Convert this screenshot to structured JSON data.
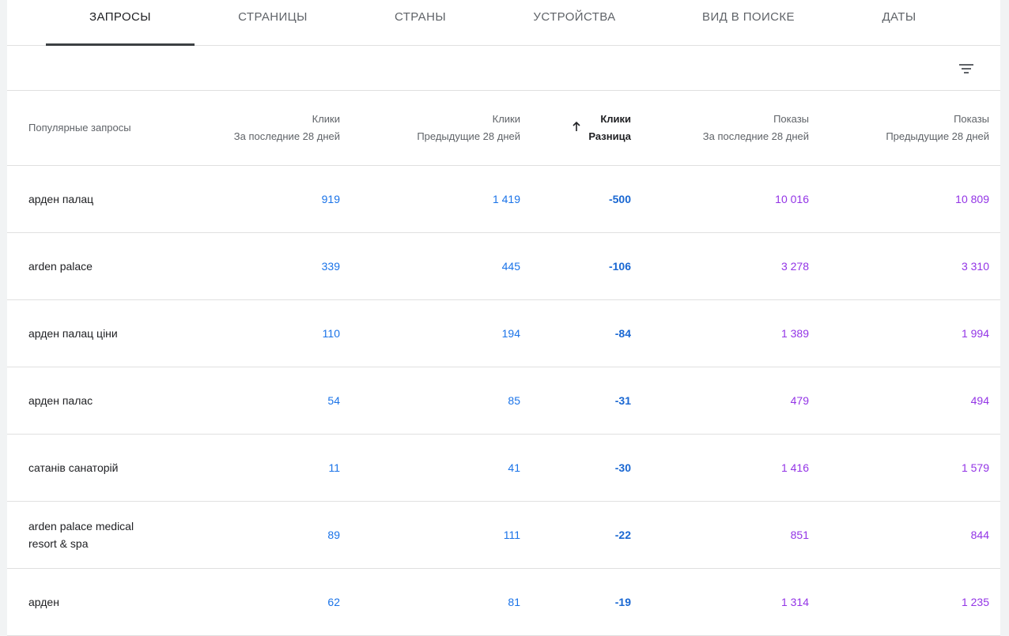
{
  "tabs": [
    {
      "label": "ЗАПРОСЫ",
      "active": true
    },
    {
      "label": "СТРАНИЦЫ",
      "active": false
    },
    {
      "label": "СТРАНЫ",
      "active": false
    },
    {
      "label": "УСТРОЙСТВА",
      "active": false
    },
    {
      "label": "ВИД В ПОИСКЕ",
      "active": false
    },
    {
      "label": "ДАТЫ",
      "active": false
    }
  ],
  "toolbar": {
    "filter_icon": "filter-list-icon"
  },
  "table": {
    "headers": {
      "query": "Популярные запросы",
      "clicks_last": {
        "line1": "Клики",
        "line2": "За последние 28 дней"
      },
      "clicks_prev": {
        "line1": "Клики",
        "line2": "Предыдущие 28 дней"
      },
      "clicks_diff": {
        "line1": "Клики",
        "line2": "Разница",
        "sort": "ascending"
      },
      "impr_last": {
        "line1": "Показы",
        "line2": "За последние 28 дней"
      },
      "impr_prev": {
        "line1": "Показы",
        "line2": "Предыдущие 28 дней"
      }
    },
    "rows": [
      {
        "query": "арден палац",
        "clicks_last": "919",
        "clicks_prev": "1 419",
        "clicks_diff": "-500",
        "impr_last": "10 016",
        "impr_prev": "10 809"
      },
      {
        "query": "arden palace",
        "clicks_last": "339",
        "clicks_prev": "445",
        "clicks_diff": "-106",
        "impr_last": "3 278",
        "impr_prev": "3 310"
      },
      {
        "query": "арден палац ціни",
        "clicks_last": "110",
        "clicks_prev": "194",
        "clicks_diff": "-84",
        "impr_last": "1 389",
        "impr_prev": "1 994"
      },
      {
        "query": "арден палас",
        "clicks_last": "54",
        "clicks_prev": "85",
        "clicks_diff": "-31",
        "impr_last": "479",
        "impr_prev": "494"
      },
      {
        "query": "сатанів санаторій",
        "clicks_last": "11",
        "clicks_prev": "41",
        "clicks_diff": "-30",
        "impr_last": "1 416",
        "impr_prev": "1 579"
      },
      {
        "query": "arden palace medical resort & spa",
        "clicks_last": "89",
        "clicks_prev": "111",
        "clicks_diff": "-22",
        "impr_last": "851",
        "impr_prev": "844"
      },
      {
        "query": "арден",
        "clicks_last": "62",
        "clicks_prev": "81",
        "clicks_diff": "-19",
        "impr_last": "1 314",
        "impr_prev": "1 235"
      }
    ]
  },
  "colors": {
    "clicks": "#1a73e8",
    "clicks_diff": "#1967d2",
    "impressions": "#9334e6",
    "active_tab_underline": "#3c4043"
  }
}
